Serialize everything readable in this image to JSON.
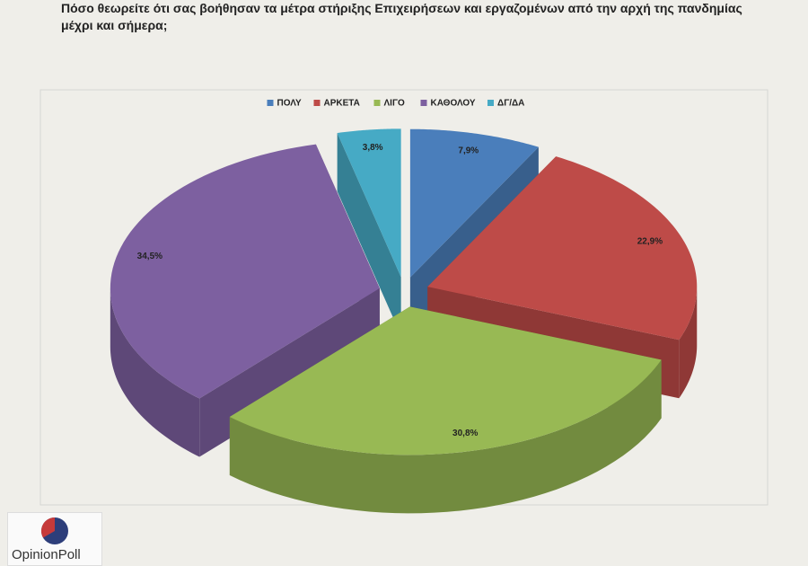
{
  "chart_data": {
    "type": "pie3d",
    "title": "Πόσο θεωρείτε ότι σας βοήθησαν τα μέτρα στήριξης Επιχειρήσεων και εργαζομένων από την αρχή της πανδημίας μέχρι και σήμερα;",
    "categories": [
      "ΠΟΛΥ",
      "ΑΡΚΕΤΑ",
      "ΛΙΓΟ",
      "ΚΑΘΟΛΟΥ",
      "ΔΓ/ΔΑ"
    ],
    "values": [
      7.9,
      22.9,
      30.8,
      34.5,
      3.8
    ],
    "value_labels": [
      "7,9%",
      "22,9%",
      "30,8%",
      "34,5%",
      "3,8%"
    ],
    "colors": [
      "#4a7ebb",
      "#be4b48",
      "#98b954",
      "#7d60a0",
      "#46aac5"
    ],
    "legend": "top"
  },
  "logo": {
    "text": "OpinionPoll"
  }
}
